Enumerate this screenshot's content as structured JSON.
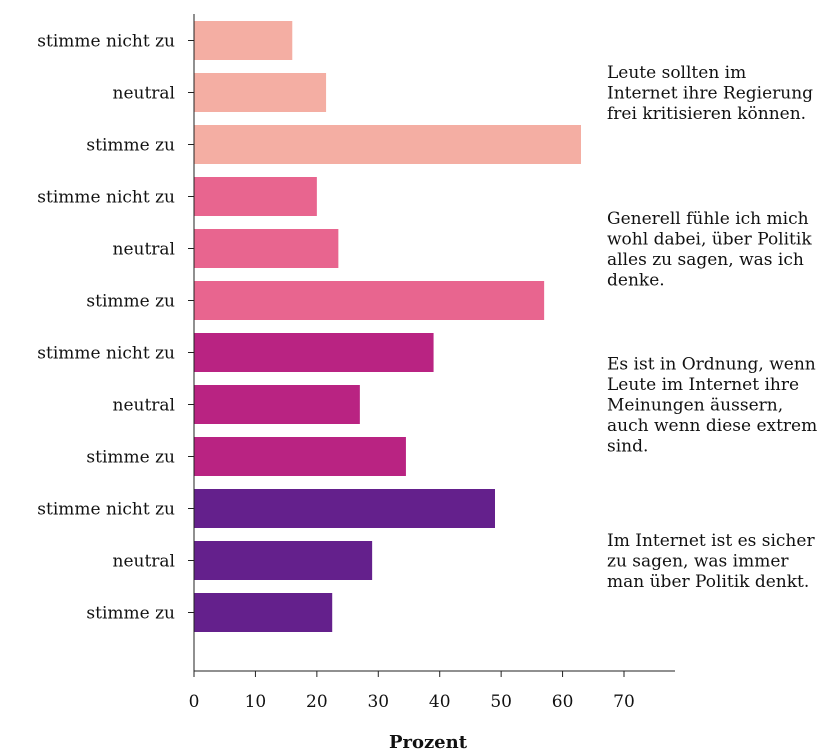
{
  "chart_data": {
    "type": "bar",
    "orientation": "horizontal",
    "xlabel": "Prozent",
    "xlim": [
      0,
      70
    ],
    "xticks": [
      "0",
      "10",
      "20",
      "30",
      "40",
      "50",
      "60",
      "70"
    ],
    "grid": false,
    "groups": [
      {
        "label": "Leute sollten im Internet ihre Regierung frei kritisieren können.",
        "label_lines": [
          "Leute sollten im",
          "Internet ihre Regierung",
          "frei kritisieren können."
        ],
        "color": "#f4aea3",
        "categories": [
          "stimme nicht zu",
          "neutral",
          "stimme zu"
        ],
        "values": [
          16,
          21.5,
          63
        ]
      },
      {
        "label": "Generell fühle ich mich wohl dabei, über Politik alles zu sagen, was ich denke.",
        "label_lines": [
          "Generell fühle ich mich",
          "wohl dabei, über Politik",
          "alles zu sagen, was ich",
          "denke."
        ],
        "color": "#e8658f",
        "categories": [
          "stimme nicht zu",
          "neutral",
          "stimme zu"
        ],
        "values": [
          20,
          23.5,
          57
        ]
      },
      {
        "label": "Es ist in Ordnung, wenn Leute im Internet ihre Meinungen äussern, auch wenn diese extrem sind.",
        "label_lines": [
          "Es ist in Ordnung, wenn",
          "Leute im Internet ihre",
          "Meinungen äussern,",
          "auch wenn diese extrem",
          "sind."
        ],
        "color": "#b92382",
        "categories": [
          "stimme nicht zu",
          "neutral",
          "stimme zu"
        ],
        "values": [
          39,
          27,
          34.5
        ]
      },
      {
        "label": "Im Internet ist es sicher zu sagen, was immer man über Politik denkt.",
        "label_lines": [
          "Im Internet ist es sicher",
          "zu sagen, was immer",
          "man über Politik denkt."
        ],
        "color": "#64208c",
        "categories": [
          "stimme nicht zu",
          "neutral",
          "stimme zu"
        ],
        "values": [
          49,
          29,
          22.5
        ]
      }
    ]
  }
}
